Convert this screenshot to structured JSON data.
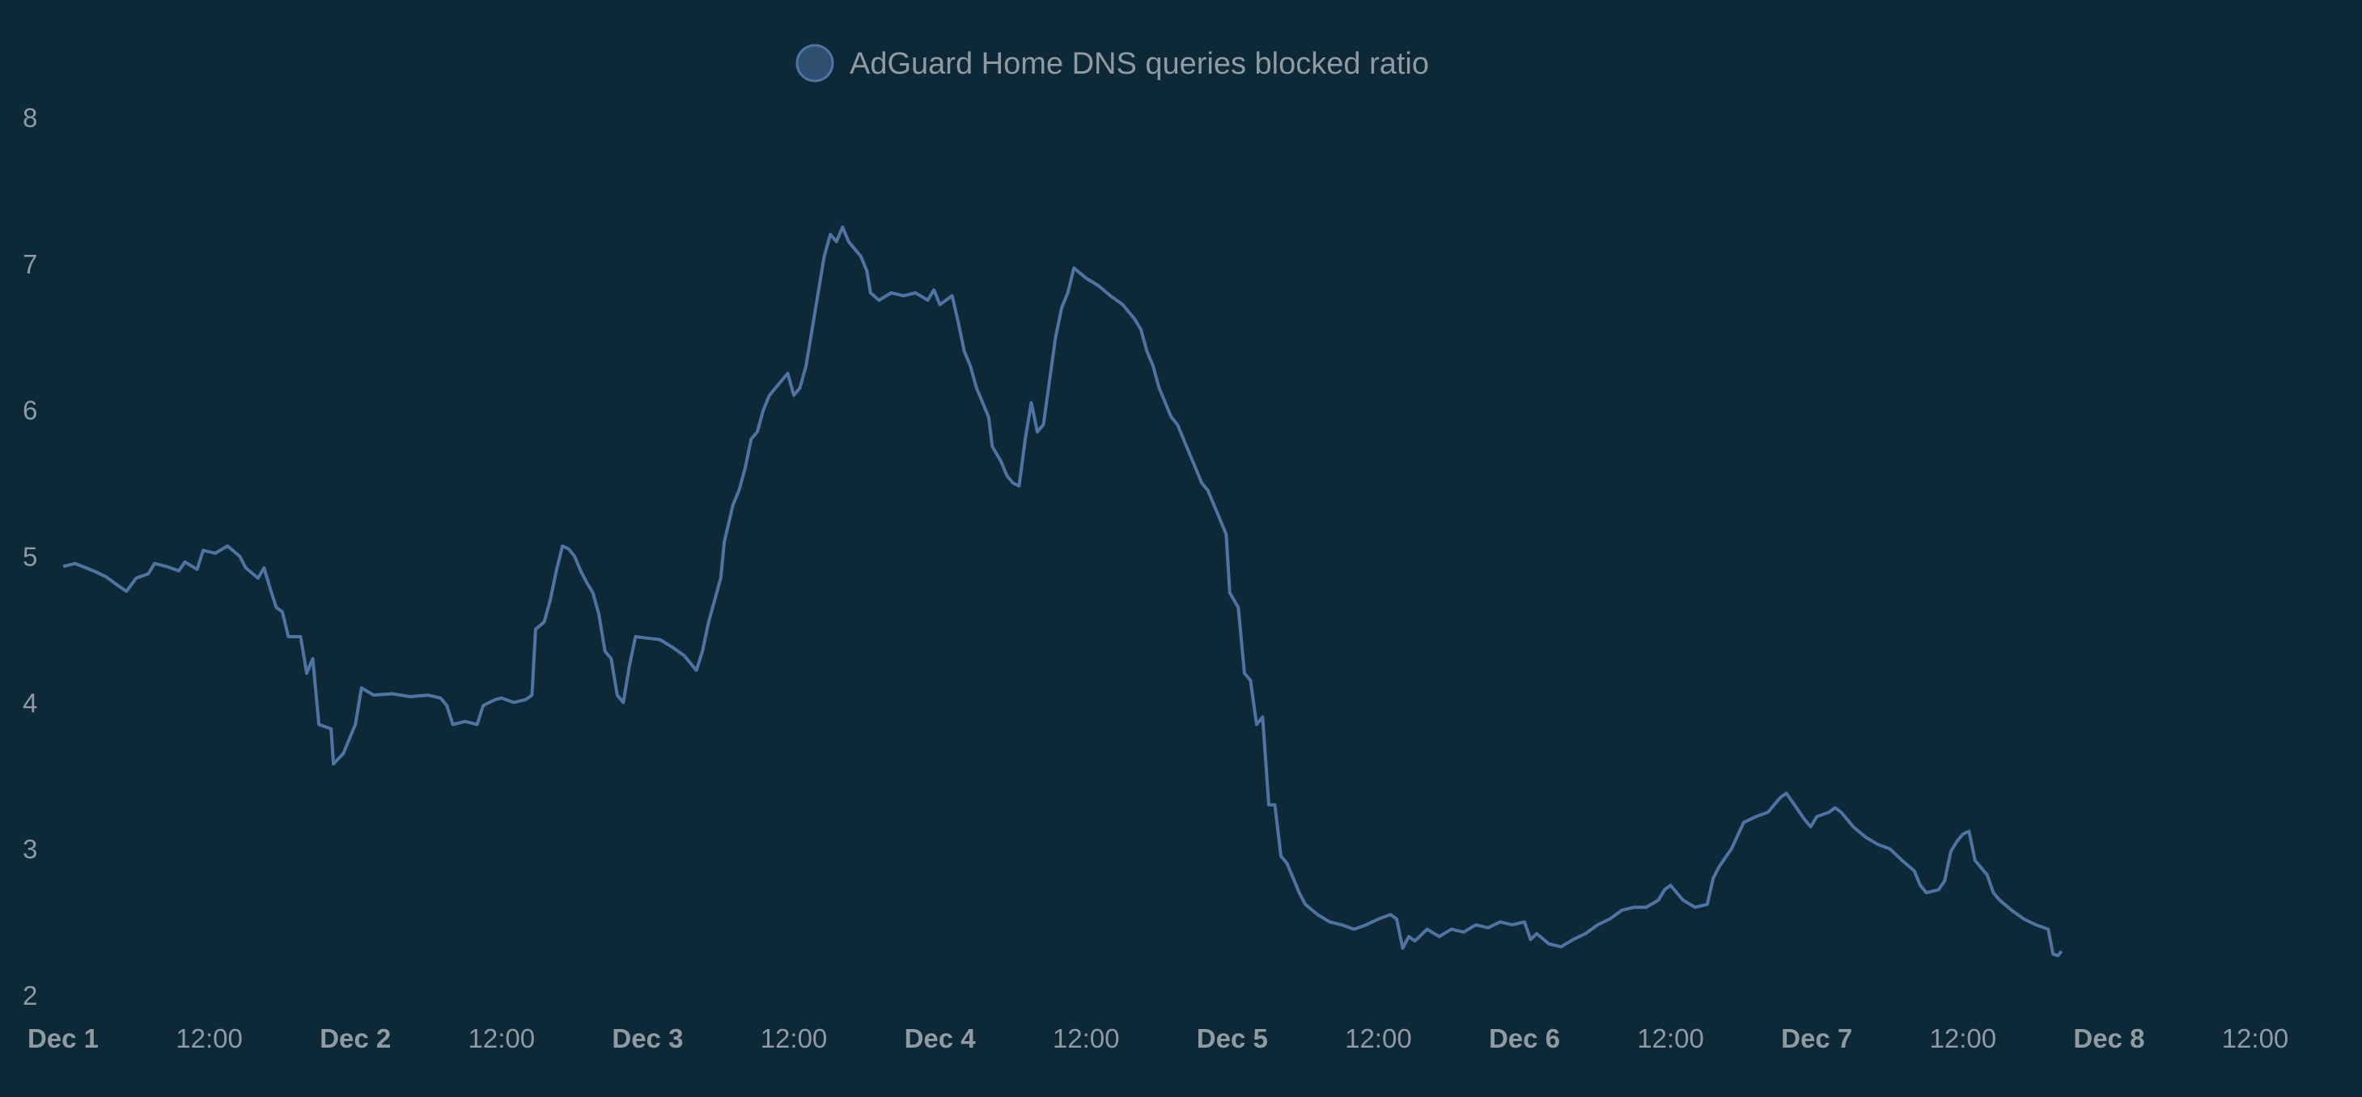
{
  "legend": {
    "label": "AdGuard Home DNS queries blocked ratio",
    "position": "top-center"
  },
  "colors": {
    "background": "#0d2836",
    "line": "#4f74a3",
    "legend_swatch_fill": "#2f4f70",
    "text": "#8f9aa1"
  },
  "chart_data": {
    "type": "line",
    "title": "",
    "xlabel": "",
    "ylabel": "",
    "ylim": [
      2,
      8
    ],
    "xlim": [
      "Dec 1 00:00",
      "Dec 8 19:30"
    ],
    "grid": false,
    "legend_position": "top-center",
    "x_tick_labels": [
      {
        "label": "Dec 1",
        "major": true
      },
      {
        "label": "12:00",
        "major": false
      },
      {
        "label": "Dec 2",
        "major": true
      },
      {
        "label": "12:00",
        "major": false
      },
      {
        "label": "Dec 3",
        "major": true
      },
      {
        "label": "12:00",
        "major": false
      },
      {
        "label": "Dec 4",
        "major": true
      },
      {
        "label": "12:00",
        "major": false
      },
      {
        "label": "Dec 5",
        "major": true
      },
      {
        "label": "12:00",
        "major": false
      },
      {
        "label": "Dec 6",
        "major": true
      },
      {
        "label": "12:00",
        "major": false
      },
      {
        "label": "Dec 7",
        "major": true
      },
      {
        "label": "12:00",
        "major": false
      },
      {
        "label": "Dec 8",
        "major": true
      },
      {
        "label": "12:00",
        "major": false
      }
    ],
    "y_tick_labels": [
      "2",
      "3",
      "4",
      "5",
      "6",
      "7",
      "8"
    ],
    "series": [
      {
        "name": "AdGuard Home DNS queries blocked ratio",
        "x_unit": "hours since Dec 1 00:00",
        "points": [
          [
            0.0,
            4.93
          ],
          [
            1.0,
            4.95
          ],
          [
            2.5,
            4.9
          ],
          [
            3.5,
            4.86
          ],
          [
            4.5,
            4.8
          ],
          [
            5.2,
            4.76
          ],
          [
            6.0,
            4.85
          ],
          [
            7.0,
            4.88
          ],
          [
            7.5,
            4.95
          ],
          [
            8.5,
            4.93
          ],
          [
            9.5,
            4.9
          ],
          [
            10.0,
            4.96
          ],
          [
            11.0,
            4.91
          ],
          [
            11.5,
            5.04
          ],
          [
            12.5,
            5.02
          ],
          [
            13.5,
            5.07
          ],
          [
            14.5,
            5.0
          ],
          [
            15.0,
            4.92
          ],
          [
            16.0,
            4.85
          ],
          [
            16.5,
            4.92
          ],
          [
            17.0,
            4.78
          ],
          [
            17.5,
            4.65
          ],
          [
            18.0,
            4.62
          ],
          [
            18.5,
            4.45
          ],
          [
            19.5,
            4.45
          ],
          [
            20.0,
            4.2
          ],
          [
            20.5,
            4.3
          ],
          [
            21.0,
            3.85
          ],
          [
            22.0,
            3.82
          ],
          [
            22.2,
            3.58
          ],
          [
            23.0,
            3.65
          ],
          [
            24.0,
            3.85
          ],
          [
            24.5,
            4.1
          ],
          [
            25.5,
            4.05
          ],
          [
            27.0,
            4.06
          ],
          [
            28.5,
            4.04
          ],
          [
            30.0,
            4.05
          ],
          [
            31.0,
            4.03
          ],
          [
            31.5,
            3.98
          ],
          [
            32.0,
            3.85
          ],
          [
            33.0,
            3.87
          ],
          [
            34.0,
            3.85
          ],
          [
            34.5,
            3.98
          ],
          [
            35.5,
            4.02
          ],
          [
            36.0,
            4.03
          ],
          [
            37.0,
            4.0
          ],
          [
            38.0,
            4.02
          ],
          [
            38.5,
            4.05
          ],
          [
            38.8,
            4.5
          ],
          [
            39.5,
            4.55
          ],
          [
            40.0,
            4.7
          ],
          [
            40.5,
            4.9
          ],
          [
            41.0,
            5.07
          ],
          [
            41.5,
            5.05
          ],
          [
            42.0,
            5.0
          ],
          [
            42.5,
            4.9
          ],
          [
            43.0,
            4.82
          ],
          [
            43.5,
            4.75
          ],
          [
            44.0,
            4.6
          ],
          [
            44.5,
            4.35
          ],
          [
            45.0,
            4.3
          ],
          [
            45.5,
            4.05
          ],
          [
            46.0,
            4.0
          ],
          [
            46.5,
            4.25
          ],
          [
            47.0,
            4.45
          ],
          [
            48.0,
            4.44
          ],
          [
            49.0,
            4.43
          ],
          [
            50.0,
            4.38
          ],
          [
            51.0,
            4.32
          ],
          [
            52.0,
            4.22
          ],
          [
            52.5,
            4.35
          ],
          [
            53.0,
            4.55
          ],
          [
            53.5,
            4.7
          ],
          [
            54.0,
            4.85
          ],
          [
            54.3,
            5.1
          ],
          [
            55.0,
            5.35
          ],
          [
            55.5,
            5.45
          ],
          [
            56.0,
            5.6
          ],
          [
            56.5,
            5.8
          ],
          [
            57.0,
            5.85
          ],
          [
            57.5,
            6.0
          ],
          [
            58.0,
            6.1
          ],
          [
            58.5,
            6.15
          ],
          [
            59.0,
            6.2
          ],
          [
            59.5,
            6.25
          ],
          [
            60.0,
            6.1
          ],
          [
            60.5,
            6.15
          ],
          [
            61.0,
            6.3
          ],
          [
            61.5,
            6.55
          ],
          [
            62.0,
            6.8
          ],
          [
            62.5,
            7.05
          ],
          [
            63.0,
            7.2
          ],
          [
            63.5,
            7.15
          ],
          [
            64.0,
            7.25
          ],
          [
            64.5,
            7.15
          ],
          [
            65.0,
            7.1
          ],
          [
            65.5,
            7.05
          ],
          [
            66.0,
            6.95
          ],
          [
            66.3,
            6.8
          ],
          [
            67.0,
            6.75
          ],
          [
            68.0,
            6.8
          ],
          [
            69.0,
            6.78
          ],
          [
            70.0,
            6.8
          ],
          [
            71.0,
            6.75
          ],
          [
            71.5,
            6.82
          ],
          [
            72.0,
            6.72
          ],
          [
            73.0,
            6.78
          ],
          [
            73.5,
            6.6
          ],
          [
            74.0,
            6.4
          ],
          [
            74.5,
            6.3
          ],
          [
            75.0,
            6.15
          ],
          [
            75.5,
            6.05
          ],
          [
            76.0,
            5.95
          ],
          [
            76.3,
            5.75
          ],
          [
            77.0,
            5.65
          ],
          [
            77.5,
            5.55
          ],
          [
            78.0,
            5.5
          ],
          [
            78.5,
            5.48
          ],
          [
            79.0,
            5.8
          ],
          [
            79.5,
            6.05
          ],
          [
            80.0,
            5.85
          ],
          [
            80.5,
            5.9
          ],
          [
            81.0,
            6.2
          ],
          [
            81.5,
            6.5
          ],
          [
            82.0,
            6.7
          ],
          [
            82.5,
            6.8
          ],
          [
            83.0,
            6.97
          ],
          [
            84.0,
            6.9
          ],
          [
            85.0,
            6.85
          ],
          [
            86.0,
            6.78
          ],
          [
            87.0,
            6.72
          ],
          [
            88.0,
            6.62
          ],
          [
            88.5,
            6.55
          ],
          [
            89.0,
            6.4
          ],
          [
            89.5,
            6.3
          ],
          [
            90.0,
            6.15
          ],
          [
            90.5,
            6.05
          ],
          [
            91.0,
            5.95
          ],
          [
            91.5,
            5.9
          ],
          [
            92.0,
            5.8
          ],
          [
            92.5,
            5.7
          ],
          [
            93.0,
            5.6
          ],
          [
            93.5,
            5.5
          ],
          [
            94.0,
            5.45
          ],
          [
            94.5,
            5.35
          ],
          [
            95.0,
            5.25
          ],
          [
            95.5,
            5.15
          ],
          [
            95.8,
            4.75
          ],
          [
            96.5,
            4.65
          ],
          [
            97.0,
            4.2
          ],
          [
            97.5,
            4.15
          ],
          [
            98.0,
            3.85
          ],
          [
            98.5,
            3.9
          ],
          [
            99.0,
            3.3
          ],
          [
            99.5,
            3.3
          ],
          [
            100.0,
            2.95
          ],
          [
            100.5,
            2.9
          ],
          [
            101.0,
            2.8
          ],
          [
            101.5,
            2.7
          ],
          [
            102.0,
            2.62
          ],
          [
            103.0,
            2.55
          ],
          [
            104.0,
            2.5
          ],
          [
            105.0,
            2.48
          ],
          [
            106.0,
            2.45
          ],
          [
            107.0,
            2.48
          ],
          [
            108.0,
            2.52
          ],
          [
            109.0,
            2.55
          ],
          [
            109.5,
            2.52
          ],
          [
            110.0,
            2.32
          ],
          [
            110.5,
            2.4
          ],
          [
            111.0,
            2.37
          ],
          [
            112.0,
            2.45
          ],
          [
            113.0,
            2.4
          ],
          [
            114.0,
            2.45
          ],
          [
            115.0,
            2.43
          ],
          [
            116.0,
            2.48
          ],
          [
            117.0,
            2.46
          ],
          [
            118.0,
            2.5
          ],
          [
            119.0,
            2.48
          ],
          [
            120.0,
            2.5
          ],
          [
            120.5,
            2.38
          ],
          [
            121.0,
            2.42
          ],
          [
            122.0,
            2.35
          ],
          [
            123.0,
            2.33
          ],
          [
            124.0,
            2.38
          ],
          [
            125.0,
            2.42
          ],
          [
            126.0,
            2.48
          ],
          [
            127.0,
            2.52
          ],
          [
            128.0,
            2.58
          ],
          [
            129.0,
            2.6
          ],
          [
            130.0,
            2.6
          ],
          [
            131.0,
            2.65
          ],
          [
            131.5,
            2.72
          ],
          [
            132.0,
            2.75
          ],
          [
            132.5,
            2.7
          ],
          [
            133.0,
            2.65
          ],
          [
            134.0,
            2.6
          ],
          [
            135.0,
            2.62
          ],
          [
            135.5,
            2.8
          ],
          [
            136.0,
            2.88
          ],
          [
            137.0,
            3.0
          ],
          [
            138.0,
            3.18
          ],
          [
            139.0,
            3.22
          ],
          [
            140.0,
            3.25
          ],
          [
            140.5,
            3.3
          ],
          [
            141.0,
            3.35
          ],
          [
            141.5,
            3.38
          ],
          [
            142.0,
            3.32
          ],
          [
            143.0,
            3.2
          ],
          [
            143.5,
            3.15
          ],
          [
            144.0,
            3.22
          ],
          [
            145.0,
            3.25
          ],
          [
            145.5,
            3.28
          ],
          [
            146.0,
            3.25
          ],
          [
            147.0,
            3.15
          ],
          [
            148.0,
            3.08
          ],
          [
            149.0,
            3.03
          ],
          [
            150.0,
            3.0
          ],
          [
            151.0,
            2.92
          ],
          [
            152.0,
            2.85
          ],
          [
            152.5,
            2.75
          ],
          [
            153.0,
            2.7
          ],
          [
            154.0,
            2.72
          ],
          [
            154.5,
            2.78
          ],
          [
            155.0,
            2.98
          ],
          [
            155.5,
            3.05
          ],
          [
            156.0,
            3.1
          ],
          [
            156.5,
            3.12
          ],
          [
            157.0,
            2.92
          ],
          [
            158.0,
            2.82
          ],
          [
            158.5,
            2.7
          ],
          [
            159.0,
            2.65
          ],
          [
            160.0,
            2.58
          ],
          [
            161.0,
            2.52
          ],
          [
            162.0,
            2.48
          ],
          [
            163.0,
            2.45
          ],
          [
            163.4,
            2.28
          ],
          [
            163.8,
            2.27
          ],
          [
            164.1,
            2.3
          ]
        ]
      }
    ]
  }
}
